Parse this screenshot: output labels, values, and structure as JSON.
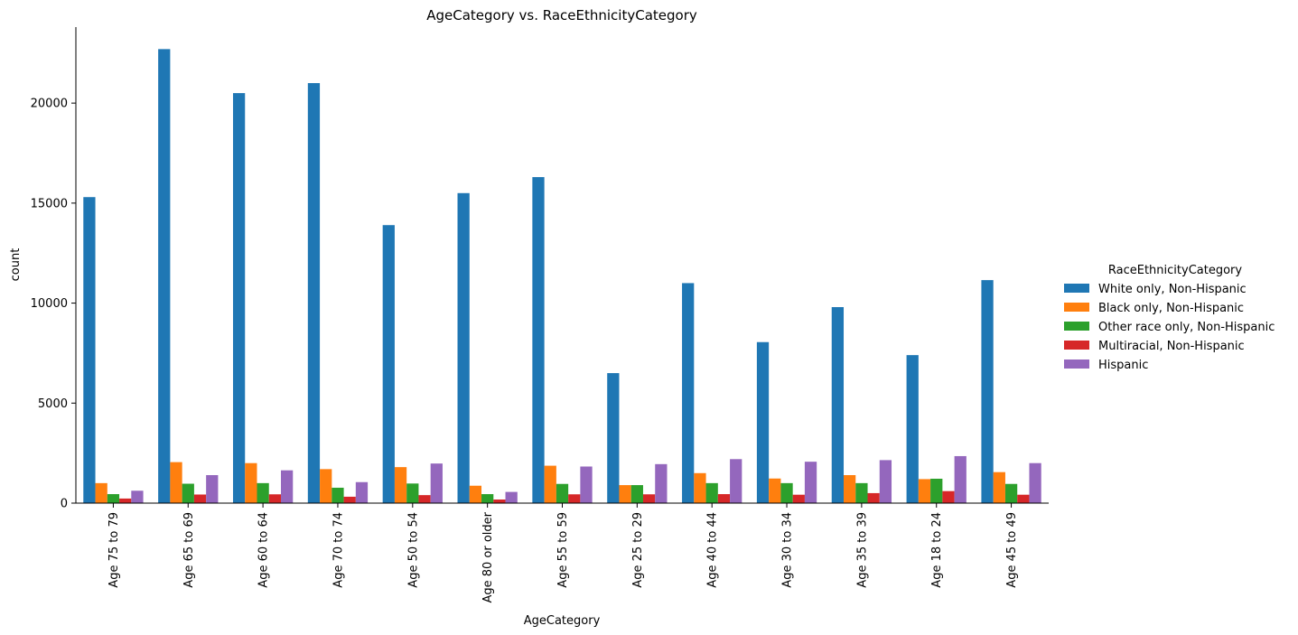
{
  "chart_data": {
    "type": "bar",
    "title": "AgeCategory vs. RaceEthnicityCategory",
    "xlabel": "AgeCategory",
    "ylabel": "count",
    "ylim": [
      0,
      23800
    ],
    "yticks": [
      0,
      5000,
      10000,
      15000,
      20000
    ],
    "categories": [
      "Age 75 to 79",
      "Age 65 to 69",
      "Age 60 to 64",
      "Age 70 to 74",
      "Age 50 to 54",
      "Age 80 or older",
      "Age 55 to 59",
      "Age 25 to 29",
      "Age 40 to 44",
      "Age 30 to 34",
      "Age 35 to 39",
      "Age 18 to 24",
      "Age 45 to 49"
    ],
    "legend": {
      "title": "RaceEthnicityCategory",
      "position": "right"
    },
    "series": [
      {
        "name": "White only, Non-Hispanic",
        "color": "#1f77b4",
        "values": [
          15300,
          22700,
          20500,
          21000,
          13900,
          15500,
          16300,
          6500,
          11000,
          8050,
          9800,
          7400,
          11150
        ]
      },
      {
        "name": "Black only, Non-Hispanic",
        "color": "#ff7f0e",
        "values": [
          1000,
          2050,
          2000,
          1700,
          1800,
          870,
          1870,
          900,
          1500,
          1230,
          1400,
          1200,
          1550
        ]
      },
      {
        "name": "Other race only, Non-Hispanic",
        "color": "#2ca02c",
        "values": [
          450,
          970,
          1000,
          770,
          980,
          450,
          960,
          900,
          1000,
          1000,
          1000,
          1220,
          960
        ]
      },
      {
        "name": "Multiracial, Non-Hispanic",
        "color": "#d62728",
        "values": [
          230,
          430,
          440,
          320,
          400,
          180,
          440,
          440,
          450,
          420,
          500,
          600,
          420
        ]
      },
      {
        "name": "Hispanic",
        "color": "#9467bd",
        "values": [
          620,
          1400,
          1640,
          1050,
          1980,
          560,
          1830,
          1950,
          2200,
          2070,
          2150,
          2350,
          2000
        ]
      }
    ]
  }
}
